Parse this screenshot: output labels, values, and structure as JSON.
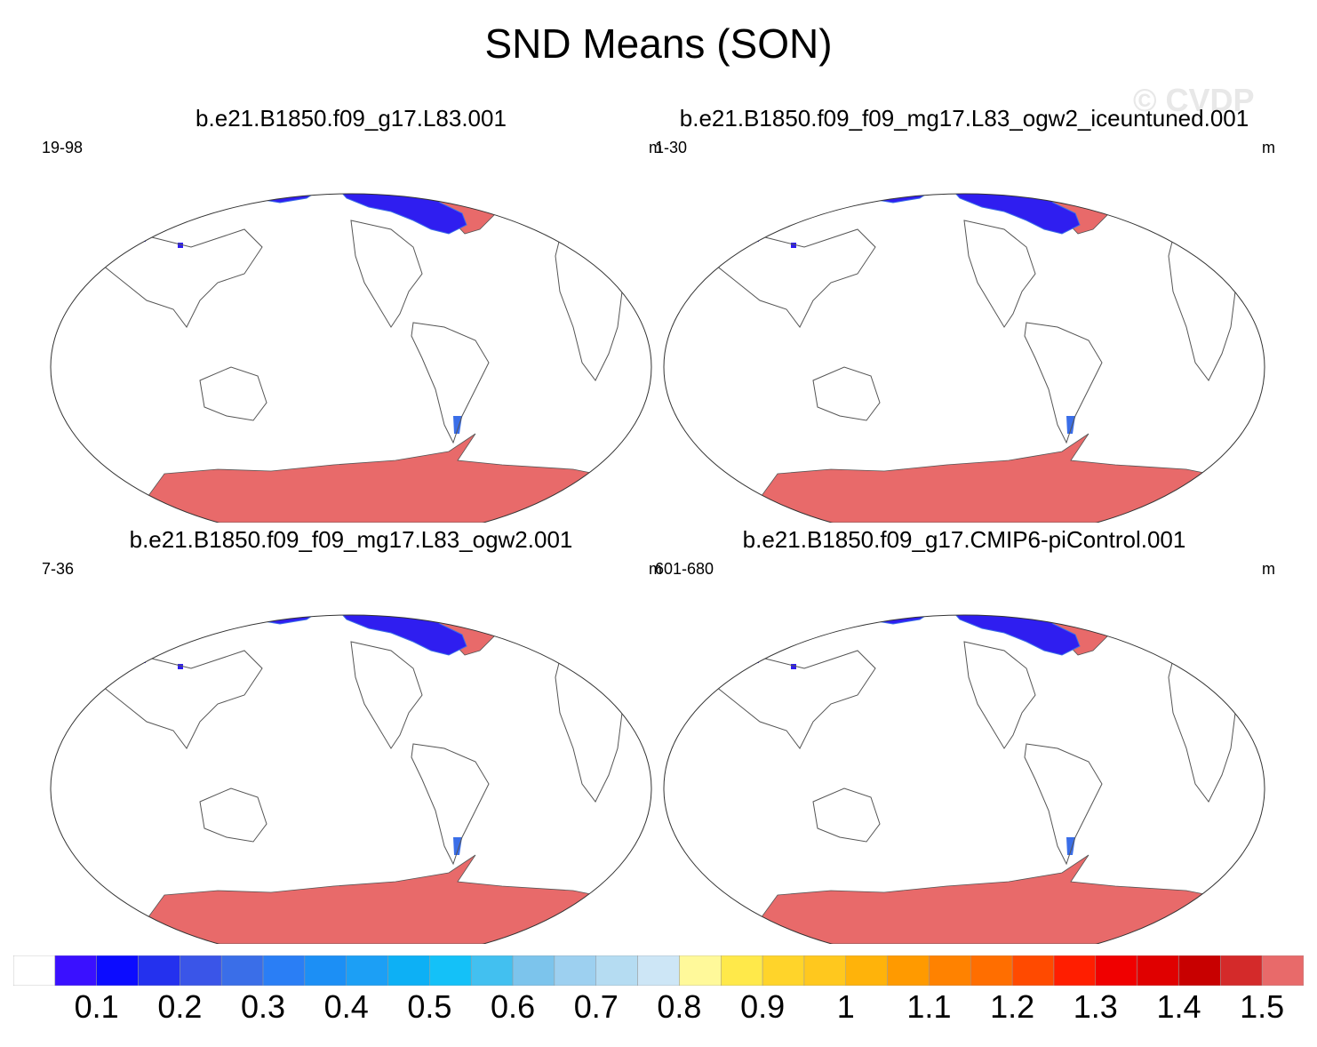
{
  "title": "SND Means (SON)",
  "watermark": "© CVDP",
  "panels": [
    {
      "title": "b.e21.B1850.f09_g17.L83.001",
      "years": "19-98",
      "units": "m"
    },
    {
      "title": "b.e21.B1850.f09_f09_mg17.L83_ogw2_iceuntuned.001",
      "years": "1-30",
      "units": "m"
    },
    {
      "title": "b.e21.B1850.f09_f09_mg17.L83_ogw2.001",
      "years": "7-36",
      "units": "m"
    },
    {
      "title": "b.e21.B1850.f09_g17.CMIP6-piControl.001",
      "years": "601-680",
      "units": "m"
    }
  ],
  "colorbar": {
    "labels": [
      "0.1",
      "0.2",
      "0.3",
      "0.4",
      "0.5",
      "0.6",
      "0.7",
      "0.8",
      "0.9",
      "1",
      "1.1",
      "1.2",
      "1.3",
      "1.4",
      "1.5"
    ],
    "colors": [
      "#ffffff",
      "#3a10ff",
      "#0c0cff",
      "#2431ee",
      "#3a55e8",
      "#3a6ee8",
      "#2a7ef5",
      "#1c8ff5",
      "#1c9ff5",
      "#0db0f5",
      "#14c1f8",
      "#42c0f0",
      "#7cc4ec",
      "#9dd0f0",
      "#b5dcf2",
      "#cde6f6",
      "#fff99a",
      "#ffe94a",
      "#ffd42a",
      "#ffc81e",
      "#ffb30a",
      "#ff9a00",
      "#ff8200",
      "#ff6e00",
      "#ff4a00",
      "#ff1e00",
      "#f00000",
      "#e00000",
      "#c80000",
      "#d42a2a",
      "#e86a6a"
    ]
  },
  "colors": {
    "land_outline": "#555555",
    "polar_fill": "#e86a6a",
    "snow_low": "#2f1ef0",
    "snow_mid": "#3a6ee8",
    "snow_high": "#ffb30a"
  }
}
